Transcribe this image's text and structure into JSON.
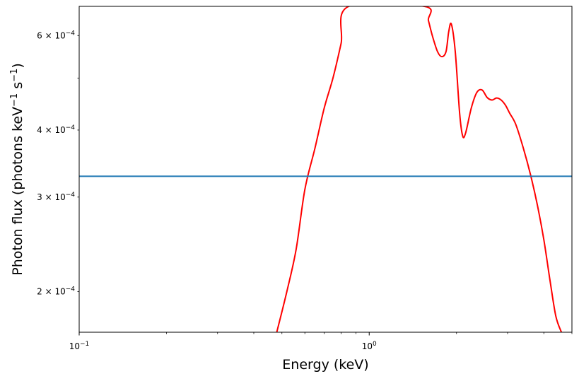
{
  "chart_data": {
    "type": "line",
    "title": "",
    "xlabel": "Energy (keV)",
    "ylabel": {
      "prefix": "Photon flux (photons keV",
      "mid": " s",
      "suffix": ")",
      "exponent": "−1"
    },
    "xscale": "log",
    "yscale": "log",
    "xlim": [
      0.1,
      5.0
    ],
    "ylim": [
      0.000168,
      0.00068
    ],
    "grid": false,
    "legend": "none",
    "x_ticks": [
      {
        "value": 0.1,
        "mantissa": "10",
        "exponent": "−1"
      },
      {
        "value": 1.0,
        "mantissa": "10",
        "exponent": "0"
      }
    ],
    "y_ticks": [
      {
        "value": 0.0002,
        "label": "2 × 10",
        "exponent": "−4"
      },
      {
        "value": 0.0003,
        "label": "3 × 10",
        "exponent": "−4"
      },
      {
        "value": 0.0004,
        "label": "4 × 10",
        "exponent": "−4"
      },
      {
        "value": 0.0006,
        "label": "6 × 10",
        "exponent": "−4"
      }
    ],
    "y_minor_ticks_unlabeled": [
      0.0005
    ],
    "series": [
      {
        "color": "#ff0000",
        "x": [
          0.48,
          0.52,
          0.56,
          0.6,
          0.65,
          0.7,
          0.75,
          0.8,
          0.85,
          1.55,
          1.6,
          1.65,
          1.72,
          1.78,
          1.84,
          1.88,
          1.92,
          1.98,
          2.05,
          2.1,
          2.15,
          2.25,
          2.35,
          2.45,
          2.55,
          2.65,
          2.75,
          2.85,
          2.95,
          3.05,
          3.2,
          3.4,
          3.6,
          3.8,
          4.0,
          4.2,
          4.4,
          4.6
        ],
        "y": [
          0.000168,
          0.0002,
          0.00024,
          0.00031,
          0.00037,
          0.00044,
          0.0005,
          0.00058,
          0.00068,
          0.00068,
          0.00064,
          0.0006,
          0.00056,
          0.000548,
          0.00056,
          0.00061,
          0.00063,
          0.00056,
          0.00043,
          0.00039,
          0.000395,
          0.00044,
          0.00047,
          0.000475,
          0.00046,
          0.000455,
          0.000459,
          0.000455,
          0.000445,
          0.00043,
          0.00041,
          0.00037,
          0.00033,
          0.00029,
          0.00025,
          0.00021,
          0.00018,
          0.000168
        ]
      },
      {
        "color": "#1f77b4",
        "x": [
          0.1,
          5.0
        ],
        "y": [
          0.000328,
          0.000328
        ]
      }
    ]
  }
}
